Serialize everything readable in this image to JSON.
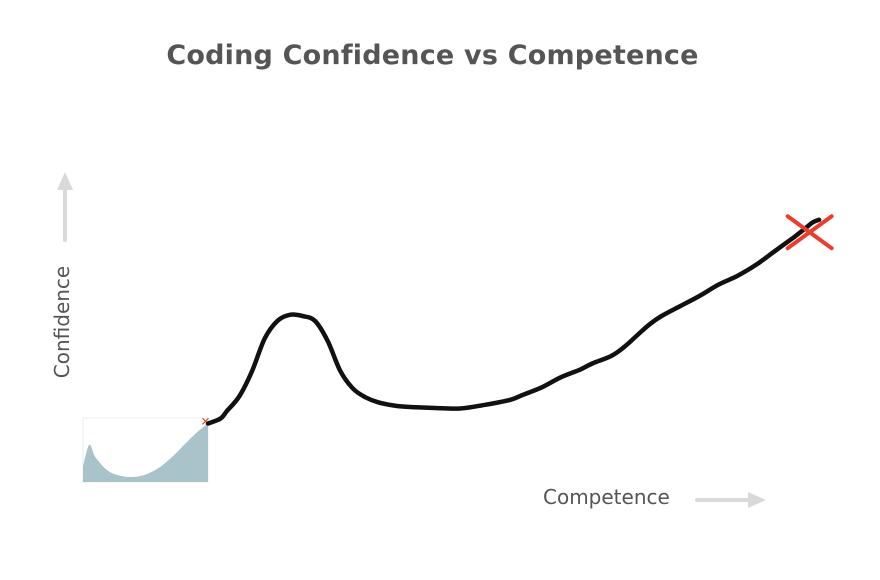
{
  "chart_data": {
    "type": "line",
    "title": "Coding Confidence vs Competence",
    "xlabel": "Competence",
    "ylabel": "Confidence",
    "xlim": [
      0,
      100
    ],
    "ylim": [
      0,
      100
    ],
    "grid": false,
    "legend": "none",
    "colors": {
      "line": "#111111",
      "marker": "#ef3b2c",
      "text": "#555555",
      "arrow": "#d9d9d9",
      "inset_fill": "#9fbcc4"
    },
    "series": [
      {
        "x": [
          0,
          2,
          3,
          5,
          7,
          9,
          11,
          13,
          15,
          17,
          19,
          21,
          23,
          25,
          27,
          30,
          33,
          36,
          40,
          44,
          48,
          50,
          53,
          56,
          59,
          61,
          64,
          66,
          68,
          70,
          72,
          75,
          78,
          81,
          84,
          87,
          90,
          93,
          95,
          96,
          97
        ],
        "y": [
          1,
          3,
          6,
          12,
          22,
          35,
          42,
          44.5,
          44,
          42,
          34,
          22,
          15,
          11.5,
          9.5,
          8,
          7.5,
          7.2,
          7,
          8.5,
          10.5,
          12.5,
          15.5,
          19.5,
          22.5,
          25,
          28,
          31.5,
          36,
          40.5,
          44,
          48,
          52,
          56.5,
          60,
          64.5,
          70,
          75.5,
          79.5,
          81.5,
          82.5
        ]
      }
    ],
    "marker": {
      "symbol": "x-mark",
      "x": 95.5,
      "y": 77.5
    },
    "inset": {
      "description_icon": "mini-chart-thumbnail",
      "x": [
        0,
        5,
        10,
        20,
        30,
        40,
        50,
        60,
        70,
        80,
        90,
        100
      ],
      "y": [
        25,
        60,
        40,
        18,
        10,
        8,
        12,
        22,
        38,
        58,
        78,
        95
      ]
    }
  }
}
